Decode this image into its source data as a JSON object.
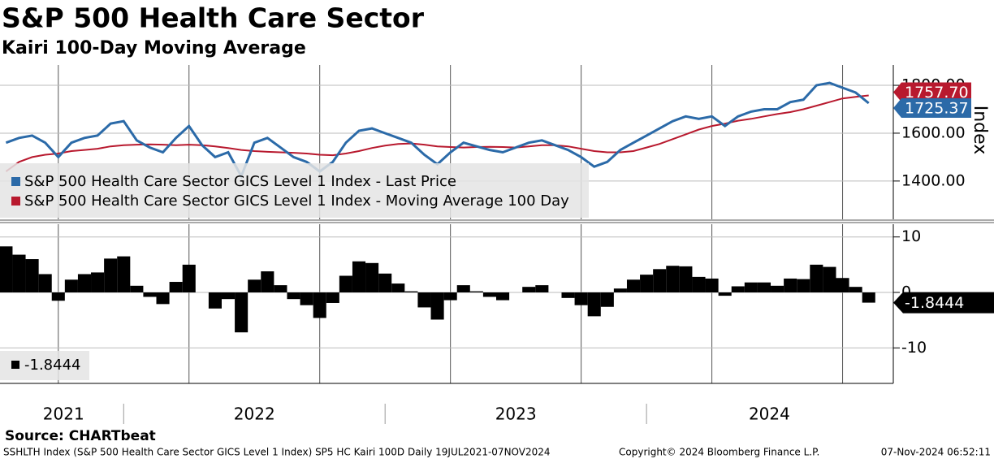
{
  "header": {
    "title": "S&P 500 Health Care Sector",
    "subtitle": "Kairi 100-Day Moving Average"
  },
  "chart_data": [
    {
      "type": "line",
      "y_label": "Index",
      "grid": true,
      "legend": "lower left",
      "x": [
        2021.55,
        2021.6,
        2021.65,
        2021.7,
        2021.75,
        2021.8,
        2021.85,
        2021.9,
        2021.95,
        2022.0,
        2022.05,
        2022.1,
        2022.15,
        2022.2,
        2022.25,
        2022.3,
        2022.35,
        2022.4,
        2022.45,
        2022.5,
        2022.55,
        2022.6,
        2022.65,
        2022.7,
        2022.75,
        2022.8,
        2022.85,
        2022.9,
        2022.95,
        2023.0,
        2023.05,
        2023.1,
        2023.15,
        2023.2,
        2023.25,
        2023.3,
        2023.35,
        2023.4,
        2023.45,
        2023.5,
        2023.55,
        2023.6,
        2023.65,
        2023.7,
        2023.75,
        2023.8,
        2023.85,
        2023.9,
        2023.95,
        2024.0,
        2024.05,
        2024.1,
        2024.15,
        2024.2,
        2024.25,
        2024.3,
        2024.35,
        2024.4,
        2024.45,
        2024.5,
        2024.55,
        2024.6,
        2024.65,
        2024.7,
        2024.75,
        2024.8,
        2024.85
      ],
      "xlim": [
        2021.527,
        2024.944
      ],
      "xgrid": [
        2021.75,
        2022.25,
        2022.75,
        2023.25,
        2023.75,
        2024.25,
        2024.75
      ],
      "ylim": [
        1240,
        1885
      ],
      "yticks": [
        {
          "value": 1400,
          "label": "1400.00"
        },
        {
          "value": 1600,
          "label": "1600.00"
        },
        {
          "value": 1800,
          "label": "1800.00"
        }
      ],
      "series": [
        {
          "name": "S&P 500 Health Care Sector GICS Level 1 Index - Last Price",
          "color": "#2b6aa8",
          "values": [
            1560,
            1580,
            1590,
            1560,
            1500,
            1560,
            1580,
            1590,
            1640,
            1650,
            1570,
            1540,
            1520,
            1580,
            1630,
            1550,
            1500,
            1520,
            1420,
            1560,
            1580,
            1540,
            1500,
            1480,
            1440,
            1480,
            1560,
            1610,
            1620,
            1600,
            1580,
            1560,
            1510,
            1470,
            1520,
            1560,
            1545,
            1530,
            1520,
            1540,
            1560,
            1570,
            1550,
            1530,
            1500,
            1460,
            1480,
            1530,
            1560,
            1590,
            1620,
            1650,
            1670,
            1660,
            1670,
            1630,
            1670,
            1690,
            1700,
            1700,
            1730,
            1740,
            1800,
            1810,
            1790,
            1770,
            1725.37
          ]
        },
        {
          "name": "S&P 500 Health Care Sector GICS Level 1 Index - Moving Average 100 Day",
          "color": "#b8192e",
          "last_label": "1757.70",
          "values": [
            1440,
            1480,
            1500,
            1510,
            1515,
            1525,
            1530,
            1535,
            1545,
            1550,
            1552,
            1553,
            1552,
            1550,
            1552,
            1550,
            1545,
            1538,
            1530,
            1525,
            1522,
            1520,
            1518,
            1515,
            1510,
            1508,
            1515,
            1525,
            1538,
            1548,
            1555,
            1557,
            1552,
            1545,
            1542,
            1540,
            1542,
            1543,
            1542,
            1540,
            1545,
            1550,
            1550,
            1545,
            1535,
            1525,
            1520,
            1520,
            1525,
            1540,
            1555,
            1575,
            1595,
            1615,
            1630,
            1640,
            1652,
            1660,
            1670,
            1680,
            1688,
            1700,
            1715,
            1730,
            1745,
            1752,
            1757.7
          ]
        }
      ]
    },
    {
      "type": "bar",
      "color": "#000000",
      "grid": true,
      "legend": "lower left",
      "x": [
        2021.55,
        2021.6,
        2021.65,
        2021.7,
        2021.75,
        2021.8,
        2021.85,
        2021.9,
        2021.95,
        2022.0,
        2022.05,
        2022.1,
        2022.15,
        2022.2,
        2022.25,
        2022.3,
        2022.35,
        2022.4,
        2022.45,
        2022.5,
        2022.55,
        2022.6,
        2022.65,
        2022.7,
        2022.75,
        2022.8,
        2022.85,
        2022.9,
        2022.95,
        2023.0,
        2023.05,
        2023.1,
        2023.15,
        2023.2,
        2023.25,
        2023.3,
        2023.35,
        2023.4,
        2023.45,
        2023.5,
        2023.55,
        2023.6,
        2023.65,
        2023.7,
        2023.75,
        2023.8,
        2023.85,
        2023.9,
        2023.95,
        2024.0,
        2024.05,
        2024.1,
        2024.15,
        2024.2,
        2024.25,
        2024.3,
        2024.35,
        2024.4,
        2024.45,
        2024.5,
        2024.55,
        2024.6,
        2024.65,
        2024.7,
        2024.75,
        2024.8,
        2024.85
      ],
      "xlim": [
        2021.527,
        2024.944
      ],
      "xgrid": [
        2021.75,
        2022.25,
        2022.75,
        2023.25,
        2023.75,
        2024.25,
        2024.75
      ],
      "xticks": [
        {
          "value": 2021.77,
          "label": "2021"
        },
        {
          "value": 2022.5,
          "label": "2022"
        },
        {
          "value": 2023.5,
          "label": "2023"
        },
        {
          "value": 2024.47,
          "label": "2024"
        }
      ],
      "year_separators": [
        2022,
        2023,
        2024
      ],
      "ylim": [
        -16.4,
        12.3
      ],
      "yticks": [
        -10,
        0,
        10
      ],
      "values": [
        8.3,
        6.8,
        6.0,
        3.3,
        -1.5,
        2.3,
        3.3,
        3.6,
        6.1,
        6.5,
        1.2,
        -0.8,
        -2.1,
        1.9,
        5.0,
        0,
        -2.9,
        -1.2,
        -7.2,
        2.3,
        3.8,
        1.3,
        -1.2,
        -2.3,
        -4.6,
        -1.9,
        3.0,
        5.6,
        5.3,
        3.4,
        1.6,
        0.2,
        -2.7,
        -4.9,
        -1.4,
        1.3,
        0.2,
        -0.8,
        -1.4,
        0,
        1.0,
        1.3,
        0,
        -1.0,
        -2.3,
        -4.3,
        -2.6,
        0.7,
        2.3,
        3.2,
        4.2,
        4.8,
        4.7,
        2.8,
        2.5,
        -0.6,
        1.1,
        1.8,
        1.8,
        1.2,
        2.5,
        2.4,
        5.0,
        4.6,
        2.6,
        1.0,
        -1.8444
      ]
    }
  ],
  "footer": {
    "source": "Source: CHARTbeat",
    "description": "SSHLTH Index (S&P 500 Health Care Sector GICS Level 1 Index) SP5 HC Kairi 100D  Daily 19JUL2021-07NOV2024",
    "copyright": "Copyright© 2024 Bloomberg Finance L.P.",
    "timestamp": "07-Nov-2024 06:52:11"
  }
}
